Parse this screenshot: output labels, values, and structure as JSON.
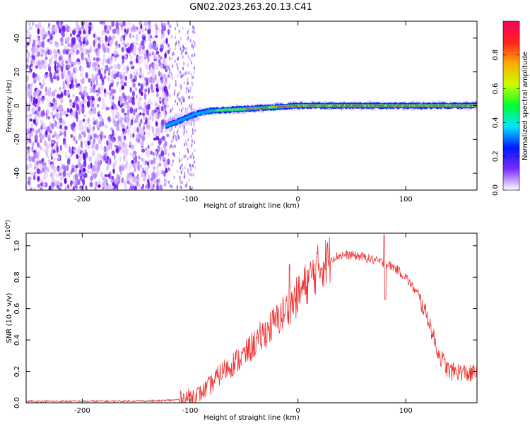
{
  "figure": {
    "title": "GN02.2023.263.20.13.C41"
  },
  "chart_data": [
    {
      "type": "heatmap",
      "xlabel": "Height of straight line (km)",
      "ylabel": "Frequency (Hz)",
      "xlim": [
        -252,
        166
      ],
      "ylim": [
        -50,
        50
      ],
      "xticks": [
        -200,
        -100,
        0,
        100
      ],
      "yticks": [
        -40,
        -20,
        0,
        20,
        40
      ],
      "colorbar": {
        "label": "Normalized spectral amplitude",
        "range": [
          0,
          1
        ],
        "ticks": [
          "0.0",
          "0.2",
          "0.4",
          "0.6",
          "0.8"
        ],
        "colors": [
          "#ffffff",
          "#7a2bff",
          "#0018ff",
          "#00e5ff",
          "#00ff30",
          "#c8ff00",
          "#ffaa00",
          "#ff2020",
          "#ff0060"
        ]
      },
      "features": {
        "noise_region_x": [
          -252,
          -95
        ],
        "signal_line": [
          {
            "x": -122,
            "freq": -12
          },
          {
            "x": -110,
            "freq": -9
          },
          {
            "x": -95,
            "freq": -5
          },
          {
            "x": -80,
            "freq": -3
          },
          {
            "x": -50,
            "freq": -2
          },
          {
            "x": 0,
            "freq": 0
          },
          {
            "x": 166,
            "freq": 0
          }
        ]
      }
    },
    {
      "type": "line",
      "xlabel": "Height of straight line (km)",
      "ylabel": "SNR (10 * v/v)",
      "y_multiplier": "(x10⁴)",
      "xlim": [
        -252,
        166
      ],
      "ylim": [
        0,
        1.08
      ],
      "xticks": [
        -200,
        -100,
        0,
        100
      ],
      "yticks": [
        "0.0",
        "0.2",
        "0.4",
        "0.6",
        "0.8",
        "1.0"
      ],
      "color": "#ee3333",
      "series": [
        {
          "x": [
            -252,
            -200,
            -130,
            -110,
            -100,
            -90,
            -80,
            -70,
            -60,
            -50,
            -40,
            -30,
            -20,
            -10,
            0,
            10,
            20,
            30,
            40,
            50,
            60,
            70,
            80,
            90,
            100,
            110,
            120,
            130,
            140,
            150,
            160,
            166
          ],
          "values": [
            0.01,
            0.01,
            0.012,
            0.02,
            0.04,
            0.06,
            0.12,
            0.2,
            0.25,
            0.3,
            0.38,
            0.45,
            0.52,
            0.6,
            0.68,
            0.78,
            0.87,
            0.92,
            0.94,
            0.94,
            0.93,
            0.91,
            0.89,
            0.86,
            0.8,
            0.7,
            0.55,
            0.32,
            0.2,
            0.2,
            0.18,
            0.2
          ]
        }
      ],
      "spikes": [
        {
          "x": -36,
          "y": 0.44
        },
        {
          "x": -8,
          "y": 0.88
        },
        {
          "x": 80,
          "y": 1.07
        },
        {
          "x": 81,
          "y": 0.66
        }
      ]
    }
  ]
}
